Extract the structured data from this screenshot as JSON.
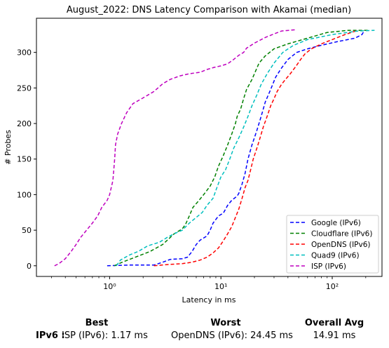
{
  "chart_data": {
    "type": "line",
    "title": "August_2022: DNS Latency Comparison with Akamai (median)",
    "xlabel": "Latency in ms",
    "ylabel": "# Probes",
    "xscale": "log",
    "xlim": [
      0.22,
      280
    ],
    "ylim": [
      -15,
      348
    ],
    "xticks": [
      1,
      10,
      100
    ],
    "xtick_labels": [
      "10⁰",
      "10¹",
      "10²"
    ],
    "yticks": [
      0,
      50,
      100,
      150,
      200,
      250,
      300
    ],
    "legend_position": "lower right",
    "series": [
      {
        "name": "Google (IPv6)",
        "color": "#0000ff",
        "points": [
          [
            0.95,
            0
          ],
          [
            1.5,
            1
          ],
          [
            2.5,
            1
          ],
          [
            3,
            5
          ],
          [
            3.5,
            9
          ],
          [
            4.5,
            10
          ],
          [
            5,
            12
          ],
          [
            5.5,
            20
          ],
          [
            6,
            30
          ],
          [
            6.5,
            36
          ],
          [
            7.5,
            42
          ],
          [
            8,
            50
          ],
          [
            8.5,
            60
          ],
          [
            9.5,
            70
          ],
          [
            10.5,
            74
          ],
          [
            11.5,
            85
          ],
          [
            12.5,
            92
          ],
          [
            14,
            98
          ],
          [
            14.5,
            102
          ],
          [
            15.5,
            115
          ],
          [
            16.5,
            130
          ],
          [
            17.5,
            150
          ],
          [
            19,
            170
          ],
          [
            21,
            190
          ],
          [
            23,
            210
          ],
          [
            25,
            230
          ],
          [
            28,
            248
          ],
          [
            31,
            265
          ],
          [
            35,
            278
          ],
          [
            40,
            290
          ],
          [
            48,
            300
          ],
          [
            60,
            305
          ],
          [
            80,
            310
          ],
          [
            110,
            315
          ],
          [
            160,
            320
          ],
          [
            185,
            325
          ],
          [
            195,
            331
          ]
        ]
      },
      {
        "name": "Cloudflare (IPv6)",
        "color": "#008000",
        "points": [
          [
            1.1,
            0
          ],
          [
            1.3,
            5
          ],
          [
            1.7,
            12
          ],
          [
            2.3,
            20
          ],
          [
            3,
            30
          ],
          [
            3.8,
            45
          ],
          [
            4.5,
            52
          ],
          [
            4.8,
            58
          ],
          [
            5.2,
            70
          ],
          [
            5.6,
            82
          ],
          [
            6.2,
            90
          ],
          [
            7,
            100
          ],
          [
            8,
            112
          ],
          [
            8.8,
            125
          ],
          [
            9.5,
            140
          ],
          [
            10.5,
            155
          ],
          [
            11.5,
            170
          ],
          [
            12.5,
            185
          ],
          [
            13.5,
            200
          ],
          [
            14,
            210
          ],
          [
            15,
            220
          ],
          [
            16,
            235
          ],
          [
            17,
            248
          ],
          [
            18,
            255
          ],
          [
            19,
            262
          ],
          [
            20,
            270
          ],
          [
            22,
            285
          ],
          [
            25,
            295
          ],
          [
            30,
            305
          ],
          [
            40,
            312
          ],
          [
            60,
            320
          ],
          [
            90,
            328
          ],
          [
            140,
            331
          ],
          [
            210,
            331
          ]
        ]
      },
      {
        "name": "OpenDNS (IPv6)",
        "color": "#ff0000",
        "points": [
          [
            2.5,
            0
          ],
          [
            3.5,
            2
          ],
          [
            4.5,
            3
          ],
          [
            5.5,
            5
          ],
          [
            6.5,
            8
          ],
          [
            7.5,
            12
          ],
          [
            8.5,
            18
          ],
          [
            9.5,
            25
          ],
          [
            10.5,
            35
          ],
          [
            11.5,
            45
          ],
          [
            12.5,
            55
          ],
          [
            13.5,
            68
          ],
          [
            14.5,
            80
          ],
          [
            15.5,
            95
          ],
          [
            16.5,
            110
          ],
          [
            17.5,
            120
          ],
          [
            18.5,
            135
          ],
          [
            19.5,
            150
          ],
          [
            20.5,
            160
          ],
          [
            21.5,
            170
          ],
          [
            22.5,
            180
          ],
          [
            24,
            195
          ],
          [
            26,
            210
          ],
          [
            28,
            225
          ],
          [
            30,
            235
          ],
          [
            32,
            245
          ],
          [
            35,
            255
          ],
          [
            38,
            262
          ],
          [
            42,
            270
          ],
          [
            47,
            280
          ],
          [
            52,
            290
          ],
          [
            57,
            298
          ],
          [
            65,
            305
          ],
          [
            80,
            312
          ],
          [
            100,
            318
          ],
          [
            130,
            325
          ],
          [
            170,
            331
          ]
        ]
      },
      {
        "name": "Quad9 (IPv6)",
        "color": "#00bfbf",
        "points": [
          [
            1.15,
            0
          ],
          [
            1.25,
            8
          ],
          [
            1.5,
            15
          ],
          [
            1.8,
            20
          ],
          [
            2.2,
            28
          ],
          [
            2.8,
            33
          ],
          [
            3.3,
            40
          ],
          [
            3.8,
            45
          ],
          [
            4.5,
            50
          ],
          [
            5.2,
            60
          ],
          [
            6,
            68
          ],
          [
            6.8,
            75
          ],
          [
            7.5,
            85
          ],
          [
            8.5,
            95
          ],
          [
            9.2,
            110
          ],
          [
            10,
            125
          ],
          [
            11,
            135
          ],
          [
            12,
            150
          ],
          [
            13,
            165
          ],
          [
            14.5,
            180
          ],
          [
            16,
            195
          ],
          [
            17.5,
            210
          ],
          [
            19,
            225
          ],
          [
            21,
            240
          ],
          [
            23,
            255
          ],
          [
            26,
            270
          ],
          [
            30,
            285
          ],
          [
            36,
            300
          ],
          [
            45,
            310
          ],
          [
            60,
            318
          ],
          [
            100,
            325
          ],
          [
            170,
            330
          ],
          [
            240,
            331
          ]
        ]
      },
      {
        "name": "ISP (IPv6)",
        "color": "#bf00bf",
        "points": [
          [
            0.32,
            0
          ],
          [
            0.35,
            3
          ],
          [
            0.4,
            10
          ],
          [
            0.45,
            20
          ],
          [
            0.5,
            30
          ],
          [
            0.55,
            40
          ],
          [
            0.62,
            50
          ],
          [
            0.7,
            60
          ],
          [
            0.78,
            70
          ],
          [
            0.85,
            82
          ],
          [
            0.95,
            92
          ],
          [
            1,
            100
          ],
          [
            1.07,
            120
          ],
          [
            1.11,
            150
          ],
          [
            1.13,
            170
          ],
          [
            1.18,
            185
          ],
          [
            1.28,
            200
          ],
          [
            1.42,
            215
          ],
          [
            1.62,
            228
          ],
          [
            2,
            236
          ],
          [
            2.5,
            245
          ],
          [
            3,
            256
          ],
          [
            3.5,
            262
          ],
          [
            4.3,
            267
          ],
          [
            5.2,
            270
          ],
          [
            6.5,
            272
          ],
          [
            7.5,
            276
          ],
          [
            8.7,
            279
          ],
          [
            10,
            281
          ],
          [
            11.5,
            284
          ],
          [
            13,
            290
          ],
          [
            14.5,
            296
          ],
          [
            16,
            300
          ],
          [
            17,
            306
          ],
          [
            20,
            313
          ],
          [
            25,
            321
          ],
          [
            30,
            326
          ],
          [
            35,
            330
          ],
          [
            48,
            332
          ]
        ]
      }
    ]
  },
  "summary": {
    "row_label": "IPv6 :",
    "best_header": "Best",
    "worst_header": "Worst",
    "avg_header": "Overall Avg",
    "best_value": "ISP (IPv6): 1.17 ms",
    "worst_value": "OpenDNS (IPv6): 24.45 ms",
    "avg_value": "14.91 ms"
  }
}
